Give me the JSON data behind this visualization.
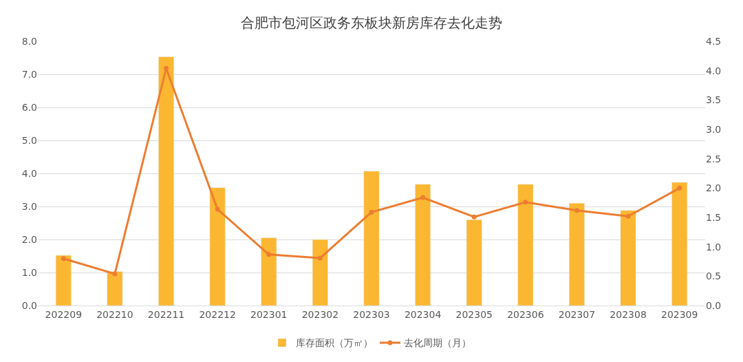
{
  "chart_data": {
    "type": "bar",
    "title": "合肥市包河区政务东板块新房库存去化走势",
    "categories": [
      "202209",
      "202210",
      "202211",
      "202212",
      "202301",
      "202302",
      "202303",
      "202304",
      "202305",
      "202306",
      "202307",
      "202308",
      "202309"
    ],
    "series": [
      {
        "name": "库存面积（万㎡）",
        "color": "#fbb731",
        "values": [
          1.52,
          1.03,
          7.53,
          3.57,
          2.05,
          2.0,
          4.07,
          3.67,
          2.6,
          3.67,
          3.1,
          2.88,
          3.73
        ]
      },
      {
        "name": "去化周期（月）",
        "type": "line",
        "axis": "y2",
        "color": "#ed7d31",
        "marker": "circle",
        "values": [
          0.8,
          0.54,
          4.04,
          1.64,
          0.87,
          0.81,
          1.59,
          1.84,
          1.51,
          1.76,
          1.62,
          1.52,
          2.0
        ]
      }
    ],
    "ylim": [
      0,
      8
    ],
    "yticks": [
      {
        "value": 0,
        "label": "0.0"
      },
      {
        "value": 1,
        "label": "1.0"
      },
      {
        "value": 2,
        "label": "2.0"
      },
      {
        "value": 3,
        "label": "3.0"
      },
      {
        "value": 4,
        "label": "4.0"
      },
      {
        "value": 5,
        "label": "5.0"
      },
      {
        "value": 6,
        "label": "6.0"
      },
      {
        "value": 7,
        "label": "7.0"
      },
      {
        "value": 8,
        "label": "8.0"
      }
    ],
    "y2lim": [
      0,
      4.5
    ],
    "y2ticks": [
      {
        "value": 0,
        "label": "0.0"
      },
      0.5,
      {
        "value": 1,
        "label": "1.0"
      },
      1.5,
      {
        "value": 2,
        "label": "2.0"
      },
      2.5,
      {
        "value": 3,
        "label": "3.0"
      },
      3.5,
      {
        "value": 4,
        "label": "4.0"
      },
      4.5
    ],
    "grid": "y",
    "legend": "bottom"
  }
}
